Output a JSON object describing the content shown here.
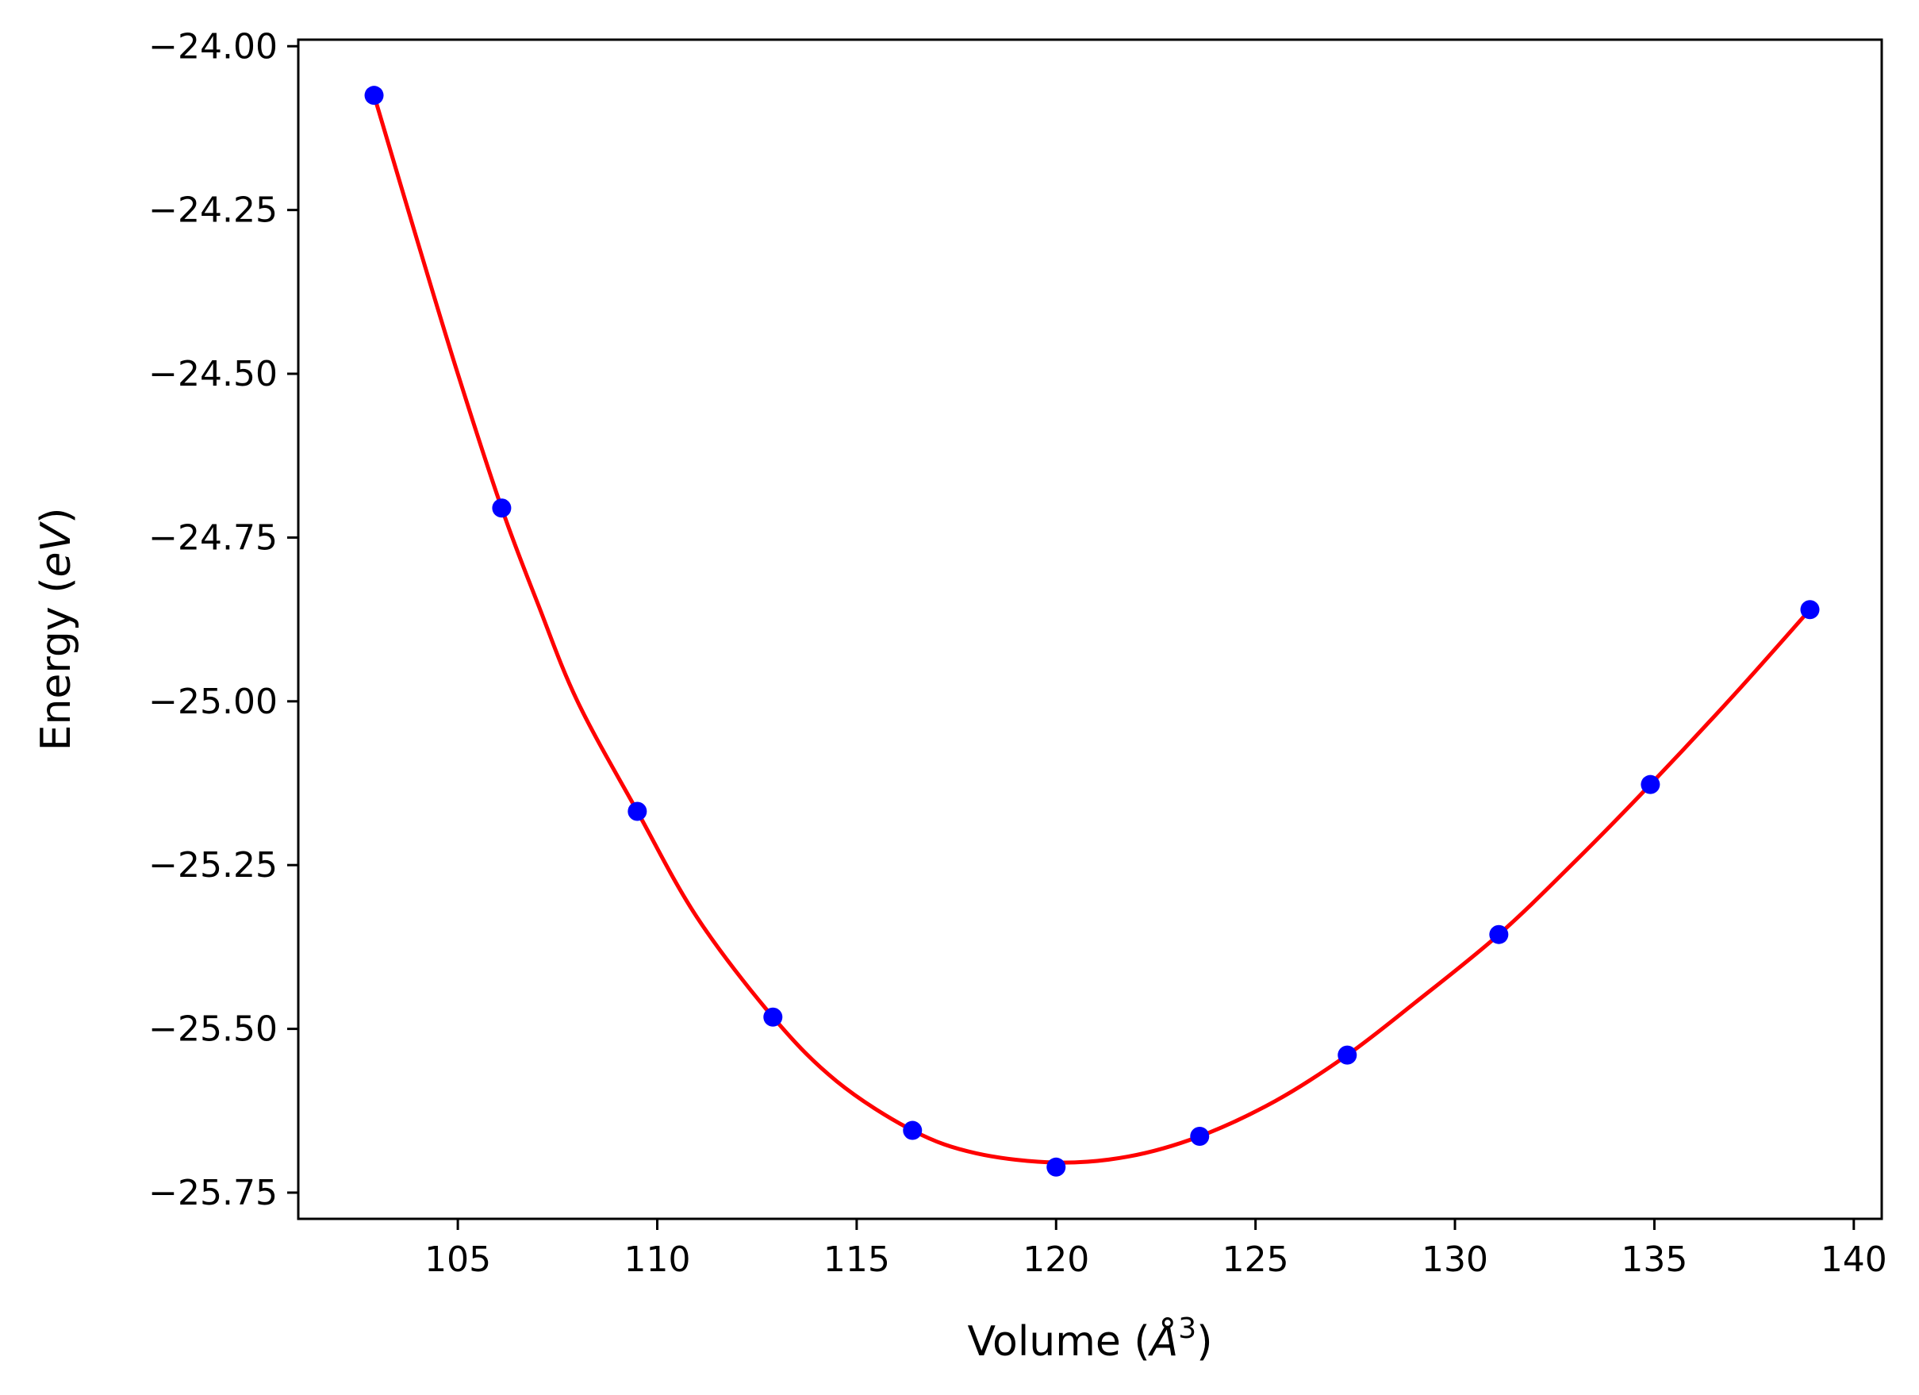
{
  "chart_data": {
    "type": "scatter",
    "title": "",
    "xlabel_prefix": "Volume (",
    "xlabel_unit": "Å",
    "xlabel_exp": "3",
    "xlabel_suffix": ")",
    "ylabel_prefix": "Energy (",
    "ylabel_unit": "eV",
    "ylabel_suffix": ")",
    "xlim": [
      101,
      140.7
    ],
    "ylim": [
      -25.79,
      -23.99
    ],
    "xticks": [
      105,
      110,
      115,
      120,
      125,
      130,
      135,
      140
    ],
    "xtick_labels": [
      "105",
      "110",
      "115",
      "120",
      "125",
      "130",
      "135",
      "140"
    ],
    "yticks": [
      -24.0,
      -24.25,
      -24.5,
      -24.75,
      -25.0,
      -25.25,
      -25.5,
      -25.75
    ],
    "ytick_labels": [
      "−24.00",
      "−24.25",
      "−24.50",
      "−24.75",
      "−25.00",
      "−25.25",
      "−25.50",
      "−25.75"
    ],
    "grid": false,
    "series": [
      {
        "kind": "points",
        "color": "#0000ff",
        "x": [
          102.9,
          106.1,
          109.5,
          112.9,
          116.4,
          120.0,
          123.6,
          127.3,
          131.1,
          134.9,
          138.9
        ],
        "y": [
          -24.075,
          -24.705,
          -25.168,
          -25.482,
          -25.655,
          -25.711,
          -25.664,
          -25.54,
          -25.356,
          -25.127,
          -24.86
        ]
      },
      {
        "kind": "fit-curve",
        "color": "#ff0000",
        "x": [
          102.9,
          104.0,
          105.0,
          106.1,
          107.0,
          108.0,
          109.5,
          111.0,
          112.9,
          114.5,
          116.4,
          118.0,
          120.0,
          121.8,
          123.6,
          125.5,
          127.3,
          129.0,
          131.1,
          133.0,
          134.9,
          137.0,
          138.9
        ],
        "y": [
          -24.075,
          -24.3,
          -24.5,
          -24.705,
          -24.85,
          -25.0,
          -25.168,
          -25.33,
          -25.482,
          -25.58,
          -25.655,
          -25.69,
          -25.704,
          -25.695,
          -25.664,
          -25.61,
          -25.54,
          -25.46,
          -25.356,
          -25.245,
          -25.127,
          -24.99,
          -24.86
        ]
      }
    ]
  }
}
